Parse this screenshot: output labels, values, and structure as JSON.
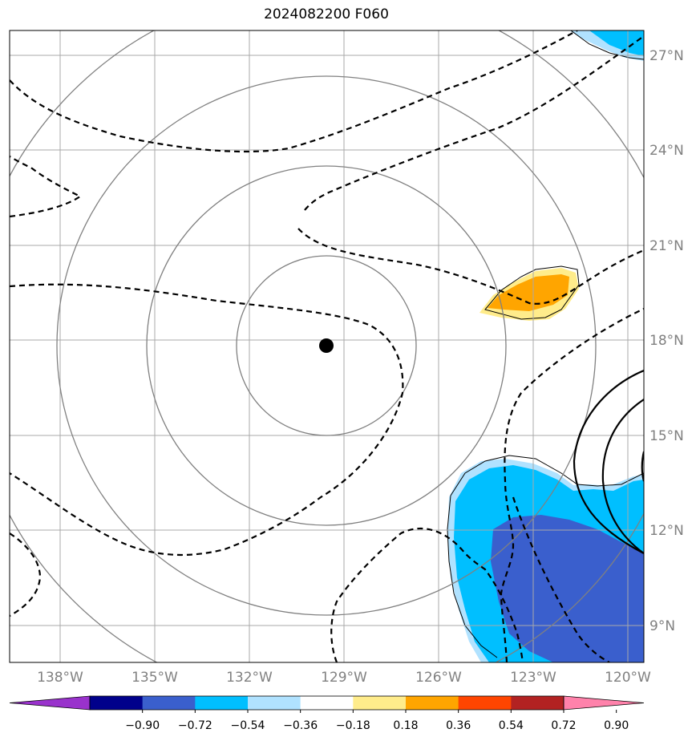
{
  "title": "2024082200 F060",
  "lon_labels": [
    "138°W",
    "135°W",
    "132°W",
    "129°W",
    "126°W",
    "123°W",
    "120°W"
  ],
  "lat_labels": [
    "27°N",
    "24°N",
    "21°N",
    "18°N",
    "15°N",
    "12°N",
    "9°N"
  ],
  "colorbar": {
    "ticks": [
      "−0.90",
      "−0.72",
      "−0.54",
      "−0.36",
      "−0.18",
      "0.18",
      "0.36",
      "0.54",
      "0.72",
      "0.90"
    ],
    "colors": [
      "#9932cc",
      "#00008b",
      "#3a5fcd",
      "#00bfff",
      "#b0e2ff",
      "#ffffff",
      "#ffec8b",
      "#ffa500",
      "#ff4500",
      "#b22222",
      "#ff82ab"
    ]
  },
  "center_marker": "storm-center-dot"
}
